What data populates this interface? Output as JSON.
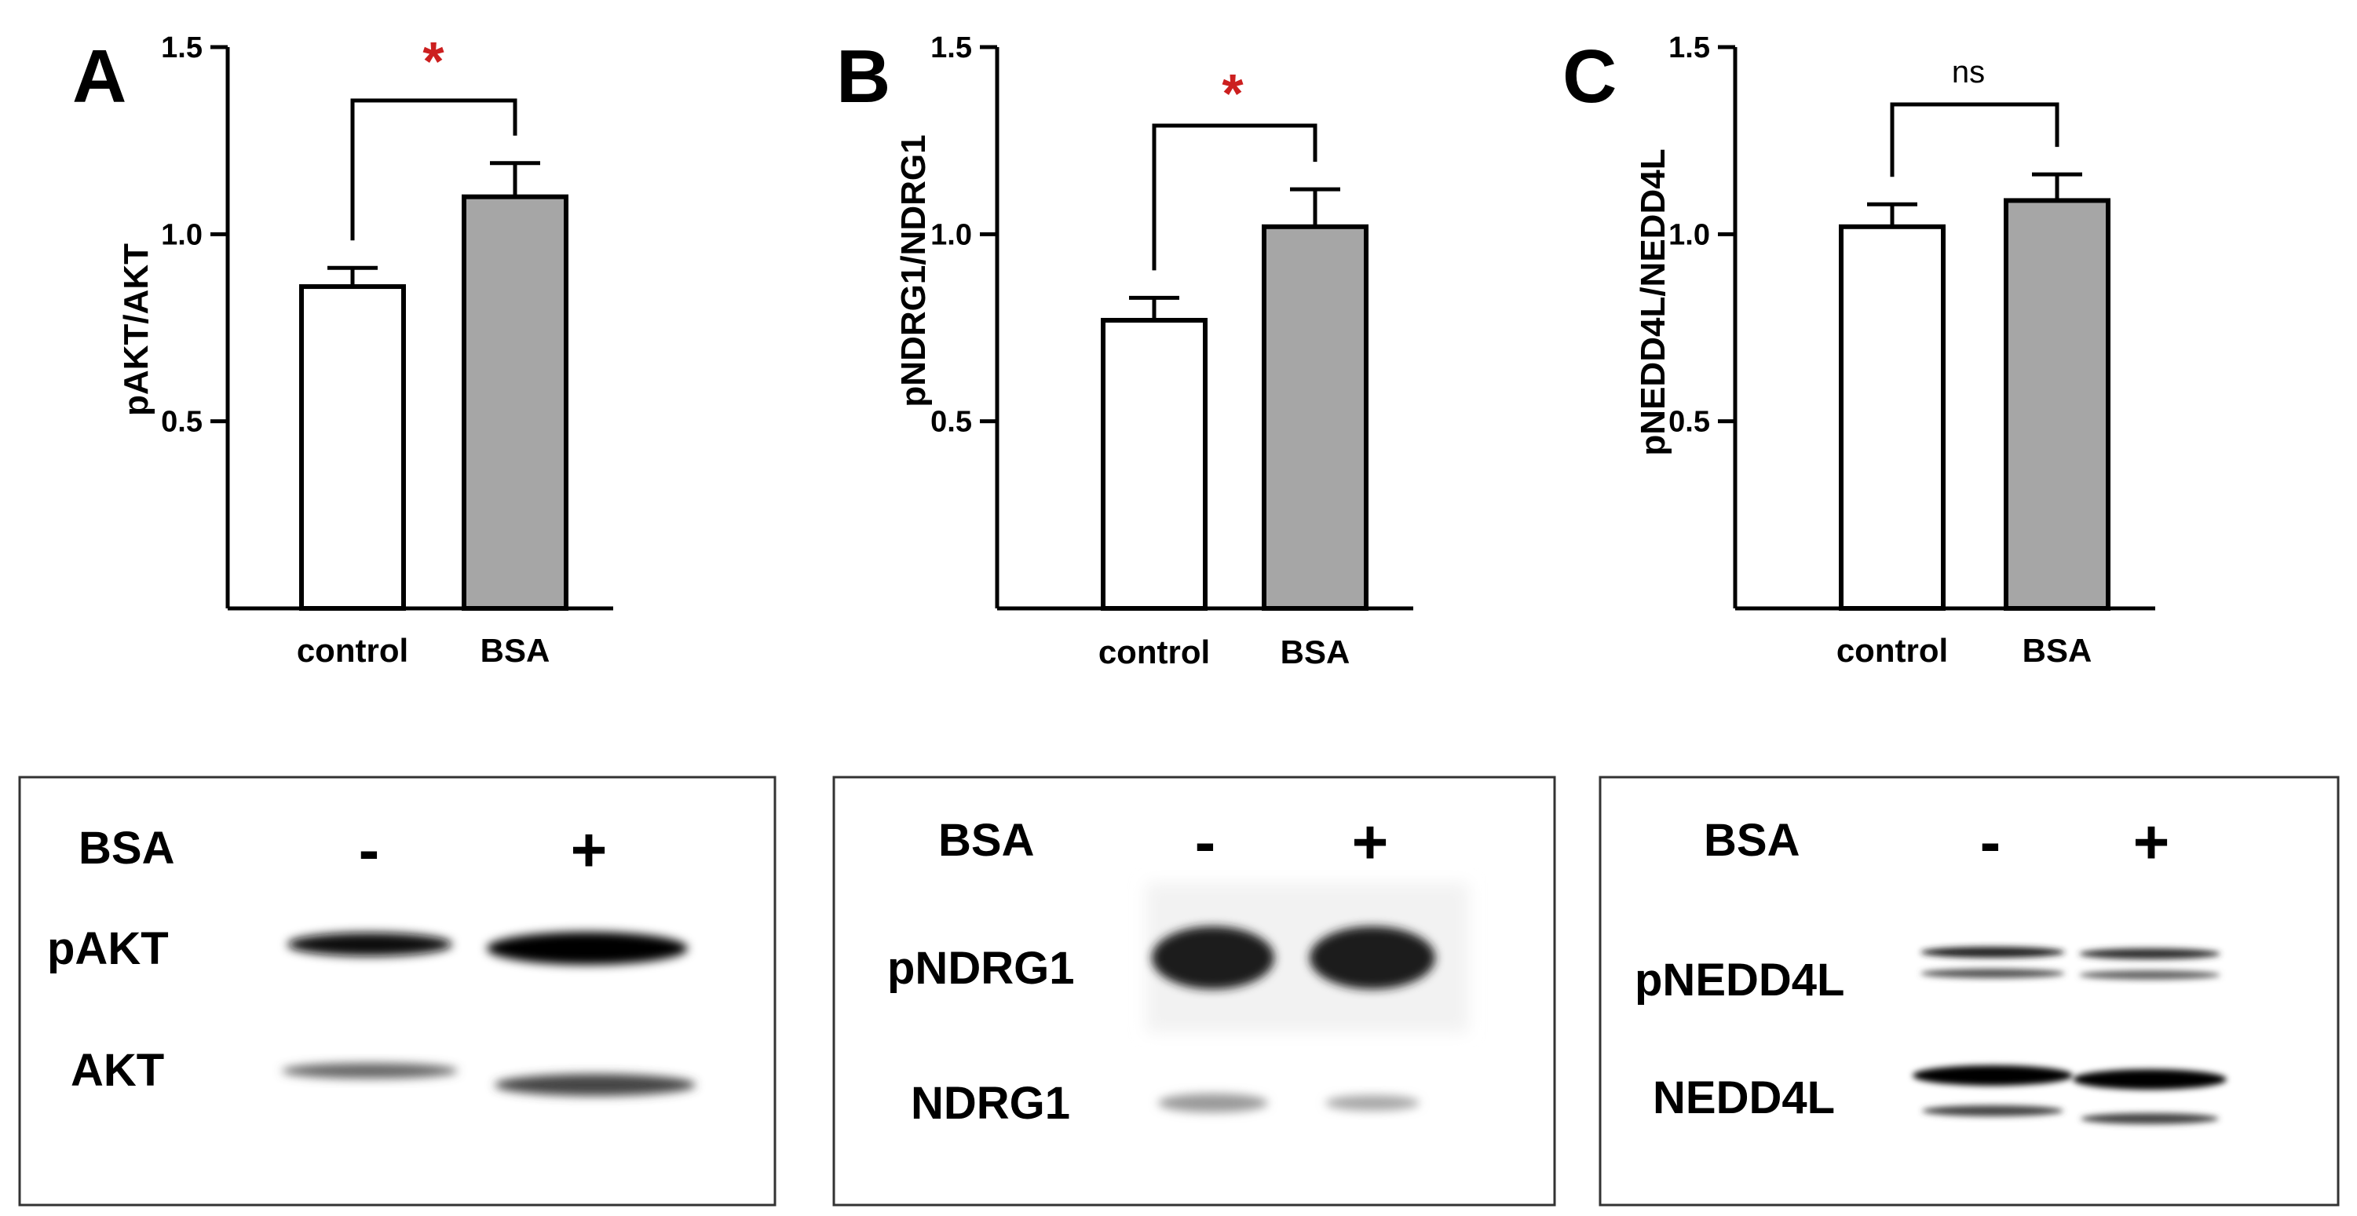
{
  "chart_data": [
    {
      "type": "bar",
      "panel": "A",
      "categories": [
        "control",
        "BSA"
      ],
      "values": [
        0.86,
        1.1
      ],
      "errors": [
        0.05,
        0.09
      ],
      "ylabel": "pAKT/AKT",
      "ylim": [
        0,
        1.5
      ],
      "yticks": [
        "0.5",
        "1.0",
        "1.5"
      ],
      "significance": "*",
      "bar_colors": [
        "#ffffff",
        "#a6a6a6"
      ]
    },
    {
      "type": "bar",
      "panel": "B",
      "categories": [
        "control",
        "BSA"
      ],
      "values": [
        0.77,
        1.02
      ],
      "errors": [
        0.06,
        0.1
      ],
      "ylabel": "pNDRG1/NDRG1",
      "ylim": [
        0,
        1.5
      ],
      "yticks": [
        "0.5",
        "1.0",
        "1.5"
      ],
      "significance": "*",
      "bar_colors": [
        "#ffffff",
        "#a6a6a6"
      ]
    },
    {
      "type": "bar",
      "panel": "C",
      "categories": [
        "control",
        "BSA"
      ],
      "values": [
        1.02,
        1.09
      ],
      "errors": [
        0.06,
        0.07
      ],
      "ylabel": "pNEDD4L/NEDD4L",
      "ylim": [
        0,
        1.5
      ],
      "yticks": [
        "0.5",
        "1.0",
        "1.5"
      ],
      "significance": "ns",
      "bar_colors": [
        "#ffffff",
        "#a6a6a6"
      ]
    }
  ],
  "blots": [
    {
      "treatment_label": "BSA",
      "minus": "-",
      "plus": "+",
      "rows": [
        "pAKT",
        "AKT"
      ]
    },
    {
      "treatment_label": "BSA",
      "minus": "-",
      "plus": "+",
      "rows": [
        "pNDRG1",
        "NDRG1"
      ]
    },
    {
      "treatment_label": "BSA",
      "minus": "-",
      "plus": "+",
      "rows": [
        "pNEDD4L",
        "NEDD4L"
      ]
    }
  ],
  "colors": {
    "significant": "#cc1f1f",
    "ns": "#000000"
  }
}
